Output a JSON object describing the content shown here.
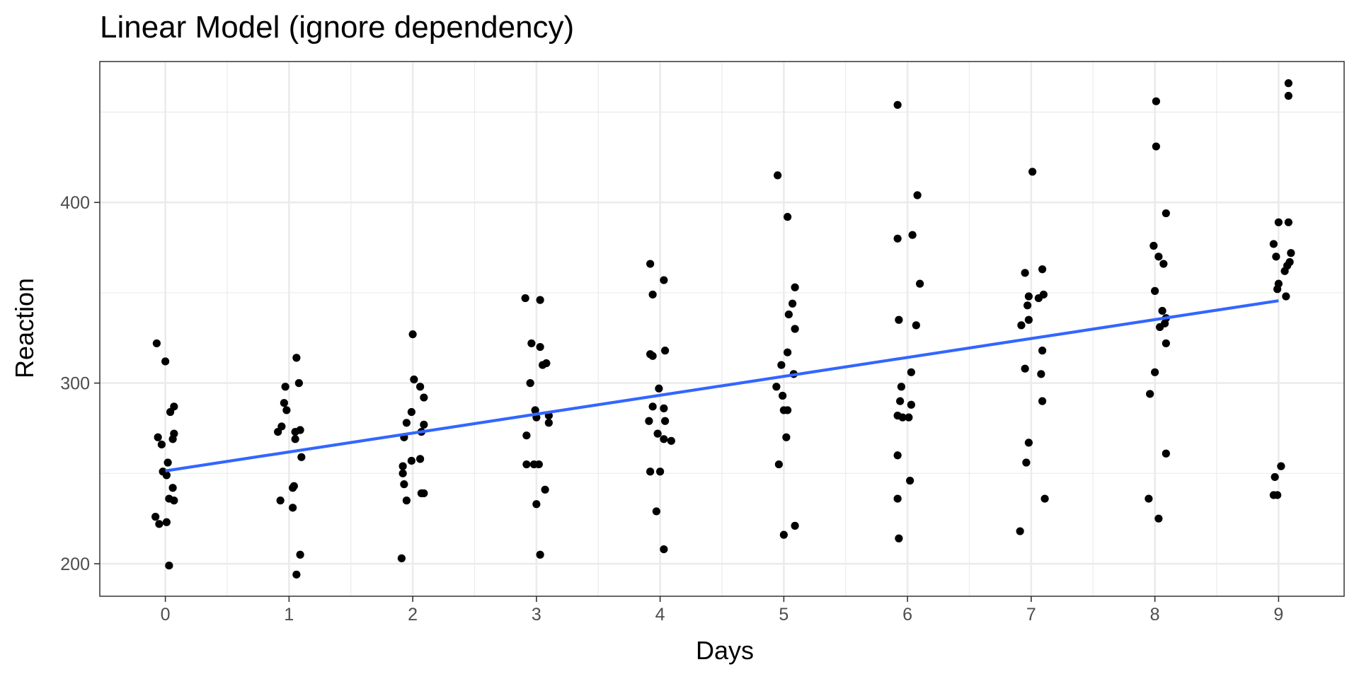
{
  "chart_data": {
    "type": "scatter",
    "title": "Linear Model (ignore dependency)",
    "xlabel": "Days",
    "ylabel": "Reaction",
    "xlim": [
      -0.53,
      9.53
    ],
    "ylim": [
      182,
      478
    ],
    "x_ticks": [
      0,
      1,
      2,
      3,
      4,
      5,
      6,
      7,
      8,
      9
    ],
    "y_ticks": [
      200,
      300,
      400
    ],
    "x_tick_labels": [
      "0",
      "1",
      "2",
      "3",
      "4",
      "5",
      "6",
      "7",
      "8",
      "9"
    ],
    "y_tick_labels": [
      "200",
      "300",
      "400"
    ],
    "grid": true,
    "theme": "black-and-white",
    "points": [
      {
        "x": -0.07,
        "y": 322
      },
      {
        "x": 0.0,
        "y": 312
      },
      {
        "x": 0.07,
        "y": 287
      },
      {
        "x": 0.04,
        "y": 284
      },
      {
        "x": 0.07,
        "y": 272
      },
      {
        "x": -0.06,
        "y": 270
      },
      {
        "x": 0.06,
        "y": 269
      },
      {
        "x": -0.03,
        "y": 266
      },
      {
        "x": 0.02,
        "y": 256
      },
      {
        "x": -0.02,
        "y": 251
      },
      {
        "x": 0.01,
        "y": 249
      },
      {
        "x": 0.06,
        "y": 242
      },
      {
        "x": 0.03,
        "y": 236
      },
      {
        "x": 0.07,
        "y": 235
      },
      {
        "x": -0.08,
        "y": 226
      },
      {
        "x": -0.05,
        "y": 222
      },
      {
        "x": 0.01,
        "y": 223
      },
      {
        "x": 0.03,
        "y": 199
      },
      {
        "x": 1.06,
        "y": 314
      },
      {
        "x": 1.08,
        "y": 300
      },
      {
        "x": 0.97,
        "y": 298
      },
      {
        "x": 0.96,
        "y": 289
      },
      {
        "x": 0.98,
        "y": 285
      },
      {
        "x": 0.94,
        "y": 276
      },
      {
        "x": 1.09,
        "y": 274
      },
      {
        "x": 1.05,
        "y": 273
      },
      {
        "x": 0.91,
        "y": 273
      },
      {
        "x": 1.05,
        "y": 269
      },
      {
        "x": 1.1,
        "y": 259
      },
      {
        "x": 1.04,
        "y": 243
      },
      {
        "x": 1.03,
        "y": 242
      },
      {
        "x": 0.93,
        "y": 235
      },
      {
        "x": 1.03,
        "y": 231
      },
      {
        "x": 1.09,
        "y": 205
      },
      {
        "x": 1.06,
        "y": 194
      },
      {
        "x": 2.0,
        "y": 327
      },
      {
        "x": 2.01,
        "y": 302
      },
      {
        "x": 2.06,
        "y": 298
      },
      {
        "x": 2.09,
        "y": 292
      },
      {
        "x": 1.99,
        "y": 284
      },
      {
        "x": 1.95,
        "y": 278
      },
      {
        "x": 2.09,
        "y": 277
      },
      {
        "x": 2.07,
        "y": 273
      },
      {
        "x": 1.93,
        "y": 270
      },
      {
        "x": 2.06,
        "y": 258
      },
      {
        "x": 1.99,
        "y": 257
      },
      {
        "x": 1.92,
        "y": 254
      },
      {
        "x": 1.92,
        "y": 250
      },
      {
        "x": 1.93,
        "y": 244
      },
      {
        "x": 2.07,
        "y": 239
      },
      {
        "x": 2.09,
        "y": 239
      },
      {
        "x": 1.95,
        "y": 235
      },
      {
        "x": 1.91,
        "y": 203
      },
      {
        "x": 2.91,
        "y": 347
      },
      {
        "x": 3.03,
        "y": 346
      },
      {
        "x": 2.96,
        "y": 322
      },
      {
        "x": 3.03,
        "y": 320
      },
      {
        "x": 3.08,
        "y": 311
      },
      {
        "x": 3.05,
        "y": 310
      },
      {
        "x": 2.95,
        "y": 300
      },
      {
        "x": 2.99,
        "y": 285
      },
      {
        "x": 3.1,
        "y": 282
      },
      {
        "x": 3.0,
        "y": 281
      },
      {
        "x": 3.1,
        "y": 278
      },
      {
        "x": 2.92,
        "y": 271
      },
      {
        "x": 2.92,
        "y": 255
      },
      {
        "x": 2.98,
        "y": 255
      },
      {
        "x": 3.02,
        "y": 255
      },
      {
        "x": 3.07,
        "y": 241
      },
      {
        "x": 3.0,
        "y": 233
      },
      {
        "x": 3.03,
        "y": 205
      },
      {
        "x": 3.92,
        "y": 366
      },
      {
        "x": 4.03,
        "y": 357
      },
      {
        "x": 3.94,
        "y": 349
      },
      {
        "x": 4.04,
        "y": 318
      },
      {
        "x": 3.92,
        "y": 316
      },
      {
        "x": 3.94,
        "y": 315
      },
      {
        "x": 3.99,
        "y": 297
      },
      {
        "x": 3.94,
        "y": 287
      },
      {
        "x": 4.03,
        "y": 286
      },
      {
        "x": 3.91,
        "y": 279
      },
      {
        "x": 4.04,
        "y": 279
      },
      {
        "x": 3.98,
        "y": 272
      },
      {
        "x": 4.03,
        "y": 269
      },
      {
        "x": 4.09,
        "y": 268
      },
      {
        "x": 3.92,
        "y": 251
      },
      {
        "x": 4.0,
        "y": 251
      },
      {
        "x": 3.97,
        "y": 229
      },
      {
        "x": 4.03,
        "y": 208
      },
      {
        "x": 4.95,
        "y": 415
      },
      {
        "x": 5.03,
        "y": 392
      },
      {
        "x": 5.09,
        "y": 353
      },
      {
        "x": 5.07,
        "y": 344
      },
      {
        "x": 5.04,
        "y": 338
      },
      {
        "x": 5.09,
        "y": 330
      },
      {
        "x": 5.03,
        "y": 317
      },
      {
        "x": 4.98,
        "y": 310
      },
      {
        "x": 5.08,
        "y": 305
      },
      {
        "x": 4.94,
        "y": 298
      },
      {
        "x": 4.99,
        "y": 293
      },
      {
        "x": 5.0,
        "y": 285
      },
      {
        "x": 5.03,
        "y": 285
      },
      {
        "x": 5.02,
        "y": 270
      },
      {
        "x": 4.96,
        "y": 255
      },
      {
        "x": 5.09,
        "y": 221
      },
      {
        "x": 5.0,
        "y": 216
      },
      {
        "x": 5.92,
        "y": 454
      },
      {
        "x": 6.08,
        "y": 404
      },
      {
        "x": 6.04,
        "y": 382
      },
      {
        "x": 5.92,
        "y": 380
      },
      {
        "x": 6.1,
        "y": 355
      },
      {
        "x": 5.93,
        "y": 335
      },
      {
        "x": 6.07,
        "y": 332
      },
      {
        "x": 6.03,
        "y": 306
      },
      {
        "x": 5.95,
        "y": 298
      },
      {
        "x": 5.94,
        "y": 290
      },
      {
        "x": 6.03,
        "y": 288
      },
      {
        "x": 5.92,
        "y": 282
      },
      {
        "x": 5.96,
        "y": 281
      },
      {
        "x": 6.01,
        "y": 281
      },
      {
        "x": 5.92,
        "y": 260
      },
      {
        "x": 6.02,
        "y": 246
      },
      {
        "x": 5.92,
        "y": 236
      },
      {
        "x": 5.93,
        "y": 214
      },
      {
        "x": 7.01,
        "y": 417
      },
      {
        "x": 6.95,
        "y": 361
      },
      {
        "x": 7.09,
        "y": 363
      },
      {
        "x": 7.1,
        "y": 349
      },
      {
        "x": 6.98,
        "y": 348
      },
      {
        "x": 7.06,
        "y": 347
      },
      {
        "x": 6.97,
        "y": 343
      },
      {
        "x": 6.98,
        "y": 335
      },
      {
        "x": 6.92,
        "y": 332
      },
      {
        "x": 7.09,
        "y": 318
      },
      {
        "x": 6.95,
        "y": 308
      },
      {
        "x": 7.08,
        "y": 305
      },
      {
        "x": 7.09,
        "y": 290
      },
      {
        "x": 6.98,
        "y": 267
      },
      {
        "x": 6.96,
        "y": 256
      },
      {
        "x": 7.11,
        "y": 236
      },
      {
        "x": 6.91,
        "y": 218
      },
      {
        "x": 8.01,
        "y": 456
      },
      {
        "x": 8.01,
        "y": 431
      },
      {
        "x": 8.09,
        "y": 394
      },
      {
        "x": 7.99,
        "y": 376
      },
      {
        "x": 8.03,
        "y": 370
      },
      {
        "x": 8.07,
        "y": 366
      },
      {
        "x": 8.0,
        "y": 351
      },
      {
        "x": 8.06,
        "y": 340
      },
      {
        "x": 8.09,
        "y": 336
      },
      {
        "x": 8.08,
        "y": 333
      },
      {
        "x": 8.04,
        "y": 331
      },
      {
        "x": 8.09,
        "y": 322
      },
      {
        "x": 8.0,
        "y": 306
      },
      {
        "x": 7.96,
        "y": 294
      },
      {
        "x": 8.09,
        "y": 261
      },
      {
        "x": 7.95,
        "y": 236
      },
      {
        "x": 8.03,
        "y": 225
      },
      {
        "x": 9.08,
        "y": 466
      },
      {
        "x": 9.08,
        "y": 459
      },
      {
        "x": 9.0,
        "y": 389
      },
      {
        "x": 9.08,
        "y": 389
      },
      {
        "x": 8.96,
        "y": 377
      },
      {
        "x": 9.1,
        "y": 372
      },
      {
        "x": 8.98,
        "y": 370
      },
      {
        "x": 9.09,
        "y": 367
      },
      {
        "x": 9.07,
        "y": 365
      },
      {
        "x": 9.05,
        "y": 362
      },
      {
        "x": 9.0,
        "y": 355
      },
      {
        "x": 8.99,
        "y": 352
      },
      {
        "x": 9.06,
        "y": 348
      },
      {
        "x": 9.02,
        "y": 254
      },
      {
        "x": 8.97,
        "y": 248
      },
      {
        "x": 8.96,
        "y": 238
      },
      {
        "x": 8.99,
        "y": 238
      }
    ],
    "fit_line": {
      "color": "#3366ff",
      "points": [
        {
          "x": 0,
          "y": 251.4
        },
        {
          "x": 9,
          "y": 345.6
        }
      ]
    },
    "point_color": "#000000"
  }
}
